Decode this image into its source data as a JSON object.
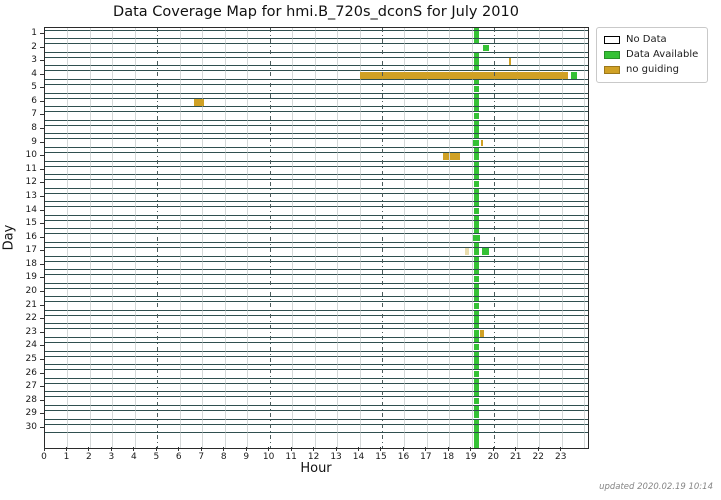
{
  "title": "Data Coverage Map for hmi.B_720s_dconS for July 2010",
  "footer": "updated 2020.02.19 10:14",
  "chart_data": {
    "type": "heatmap",
    "title": "Data Coverage Map for hmi.B_720s_dconS for July 2010",
    "xlabel": "Hour",
    "ylabel": "Day",
    "xlim": [
      0,
      24.17
    ],
    "x_tick_labels": [
      "0",
      "1",
      "2",
      "3",
      "4",
      "5",
      "6",
      "7",
      "8",
      "9",
      "10",
      "11",
      "12",
      "13",
      "14",
      "15",
      "16",
      "17",
      "18",
      "19",
      "20",
      "21",
      "22",
      "23"
    ],
    "y_tick_labels": [
      "1",
      "2",
      "3",
      "4",
      "5",
      "6",
      "7",
      "8",
      "9",
      "10",
      "11",
      "12",
      "13",
      "14",
      "15",
      "16",
      "17",
      "18",
      "19",
      "20",
      "21",
      "22",
      "23",
      "24",
      "25",
      "26",
      "27",
      "28",
      "29",
      "30"
    ],
    "grid": {
      "minor_hours": [
        1,
        2,
        3,
        4,
        6,
        7,
        8,
        9,
        11,
        12,
        13,
        14,
        16,
        17,
        18,
        19,
        21,
        22,
        23,
        24
      ],
      "major_hours": [
        5,
        10,
        15,
        20
      ]
    },
    "colors": {
      "data": "#35c135",
      "noguiding": "#d0a125",
      "pale": "#e9ddae",
      "no_data_fill": "#ffffff",
      "bar_edge": "#2F4F4F"
    },
    "daily_line": {
      "start": 19.1,
      "end": 19.33,
      "kind": "data"
    },
    "legend": [
      {
        "label": "No Data",
        "color": "#ffffff",
        "border": "#000000"
      },
      {
        "label": "Data Available",
        "color": "#35c135",
        "border": "rgba(0,0,0,0.25)"
      },
      {
        "label": "no guiding",
        "color": "#d0a125",
        "border": "rgba(0,0,0,0.25)"
      }
    ],
    "segments": [
      {
        "day": 1,
        "start": 19.1,
        "end": 19.33,
        "kind": "data"
      },
      {
        "day": 2,
        "start": 19.48,
        "end": 19.78,
        "kind": "data"
      },
      {
        "day": 3,
        "start": 19.1,
        "end": 19.33,
        "kind": "data"
      },
      {
        "day": 3,
        "start": 20.65,
        "end": 20.76,
        "kind": "noguiding"
      },
      {
        "day": 4,
        "start": 14.0,
        "end": 23.26,
        "kind": "noguiding"
      },
      {
        "day": 4,
        "start": 23.41,
        "end": 23.66,
        "kind": "data"
      },
      {
        "day": 5,
        "start": 19.1,
        "end": 19.33,
        "kind": "data"
      },
      {
        "day": 6,
        "start": 6.64,
        "end": 7.09,
        "kind": "noguiding"
      },
      {
        "day": 6,
        "start": 19.1,
        "end": 19.33,
        "kind": "data"
      },
      {
        "day": 7,
        "start": 19.1,
        "end": 19.33,
        "kind": "data"
      },
      {
        "day": 8,
        "start": 19.1,
        "end": 19.33,
        "kind": "data"
      },
      {
        "day": 9,
        "start": 19.05,
        "end": 19.33,
        "kind": "data"
      },
      {
        "day": 9,
        "start": 19.4,
        "end": 19.51,
        "kind": "noguiding"
      },
      {
        "day": 10,
        "start": 17.72,
        "end": 17.99,
        "kind": "noguiding"
      },
      {
        "day": 10,
        "start": 18.04,
        "end": 18.48,
        "kind": "noguiding"
      },
      {
        "day": 10,
        "start": 19.1,
        "end": 19.33,
        "kind": "data"
      },
      {
        "day": 11,
        "start": 19.1,
        "end": 19.33,
        "kind": "data"
      },
      {
        "day": 12,
        "start": 19.1,
        "end": 19.33,
        "kind": "data"
      },
      {
        "day": 13,
        "start": 19.1,
        "end": 19.33,
        "kind": "data"
      },
      {
        "day": 14,
        "start": 19.1,
        "end": 19.33,
        "kind": "data"
      },
      {
        "day": 15,
        "start": 19.1,
        "end": 19.33,
        "kind": "data"
      },
      {
        "day": 16,
        "start": 19.05,
        "end": 19.38,
        "kind": "data"
      },
      {
        "day": 17,
        "start": 18.71,
        "end": 18.88,
        "kind": "pale"
      },
      {
        "day": 17,
        "start": 19.1,
        "end": 19.33,
        "kind": "data"
      },
      {
        "day": 17,
        "start": 19.45,
        "end": 19.77,
        "kind": "data"
      },
      {
        "day": 18,
        "start": 19.1,
        "end": 19.33,
        "kind": "data"
      },
      {
        "day": 19,
        "start": 19.1,
        "end": 19.33,
        "kind": "data"
      },
      {
        "day": 20,
        "start": 19.1,
        "end": 19.33,
        "kind": "data"
      },
      {
        "day": 21,
        "start": 19.1,
        "end": 19.33,
        "kind": "data"
      },
      {
        "day": 22,
        "start": 19.1,
        "end": 19.33,
        "kind": "data"
      },
      {
        "day": 23,
        "start": 19.1,
        "end": 19.33,
        "kind": "data"
      },
      {
        "day": 23,
        "start": 19.37,
        "end": 19.52,
        "kind": "noguiding"
      },
      {
        "day": 24,
        "start": 19.1,
        "end": 19.33,
        "kind": "data"
      },
      {
        "day": 25,
        "start": 19.1,
        "end": 19.33,
        "kind": "data"
      },
      {
        "day": 26,
        "start": 19.1,
        "end": 19.33,
        "kind": "data"
      },
      {
        "day": 27,
        "start": 19.1,
        "end": 19.33,
        "kind": "data"
      },
      {
        "day": 28,
        "start": 19.1,
        "end": 19.33,
        "kind": "data"
      },
      {
        "day": 29,
        "start": 19.1,
        "end": 19.33,
        "kind": "data"
      },
      {
        "day": 30,
        "start": 19.1,
        "end": 19.33,
        "kind": "data"
      }
    ]
  }
}
